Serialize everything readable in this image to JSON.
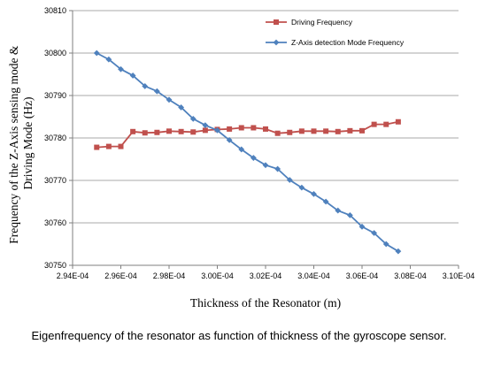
{
  "chart_data": {
    "type": "line",
    "xlabel": "Thickness of the Resonator (m)",
    "ylabel": [
      "Frequency of the Z-Axis sensing mode &",
      "Driving Mode   (Hz)"
    ],
    "xlim": [
      0.000294,
      0.00031
    ],
    "ylim": [
      30750,
      30810
    ],
    "x_ticks": [
      "2.94E-04",
      "2.96E-04",
      "2.98E-04",
      "3.00E-04",
      "3.02E-04",
      "3.04E-04",
      "3.06E-04",
      "3.08E-04",
      "3.10E-04"
    ],
    "y_ticks": [
      "30750",
      "30760",
      "30770",
      "30780",
      "30790",
      "30800",
      "30810"
    ],
    "legend_position": "top-right",
    "series": [
      {
        "name": "Driving Frequency",
        "color": "#C0504D",
        "marker": "square",
        "x": [
          0.000295,
          0.0002955,
          0.000296,
          0.0002965,
          0.000297,
          0.0002975,
          0.000298,
          0.0002985,
          0.000299,
          0.0002995,
          0.0003,
          0.0003005,
          0.000301,
          0.0003015,
          0.000302,
          0.0003025,
          0.000303,
          0.0003035,
          0.000304,
          0.0003045,
          0.000305,
          0.0003055,
          0.000306,
          0.0003065,
          0.000307,
          0.0003075
        ],
        "y": [
          30777.8,
          30778.0,
          30778.0,
          30781.5,
          30781.2,
          30781.3,
          30781.6,
          30781.5,
          30781.4,
          30781.8,
          30782.0,
          30782.1,
          30782.4,
          30782.4,
          30782.1,
          30781.1,
          30781.3,
          30781.6,
          30781.6,
          30781.6,
          30781.5,
          30781.7,
          30781.7,
          30783.2,
          30783.2,
          30783.8
        ]
      },
      {
        "name": "Z-Axis detection Mode Frequency",
        "color": "#4F81BD",
        "marker": "diamond",
        "x": [
          0.000295,
          0.0002955,
          0.000296,
          0.0002965,
          0.000297,
          0.0002975,
          0.000298,
          0.0002985,
          0.000299,
          0.0002995,
          0.0003,
          0.0003005,
          0.000301,
          0.0003015,
          0.000302,
          0.0003025,
          0.000303,
          0.0003035,
          0.000304,
          0.0003045,
          0.000305,
          0.0003055,
          0.000306,
          0.0003065,
          0.000307,
          0.0003075
        ],
        "y": [
          30800.0,
          30798.5,
          30796.2,
          30794.7,
          30792.2,
          30791.0,
          30789.0,
          30787.2,
          30784.5,
          30783.0,
          30781.8,
          30779.5,
          30777.3,
          30775.3,
          30773.6,
          30772.7,
          30770.1,
          30768.3,
          30766.8,
          30765.0,
          30762.9,
          30761.8,
          30759.1,
          30757.6,
          30755.0,
          30753.3
        ]
      }
    ]
  },
  "caption": "Eigenfrequency of the resonator as function of thickness of the gyroscope sensor."
}
